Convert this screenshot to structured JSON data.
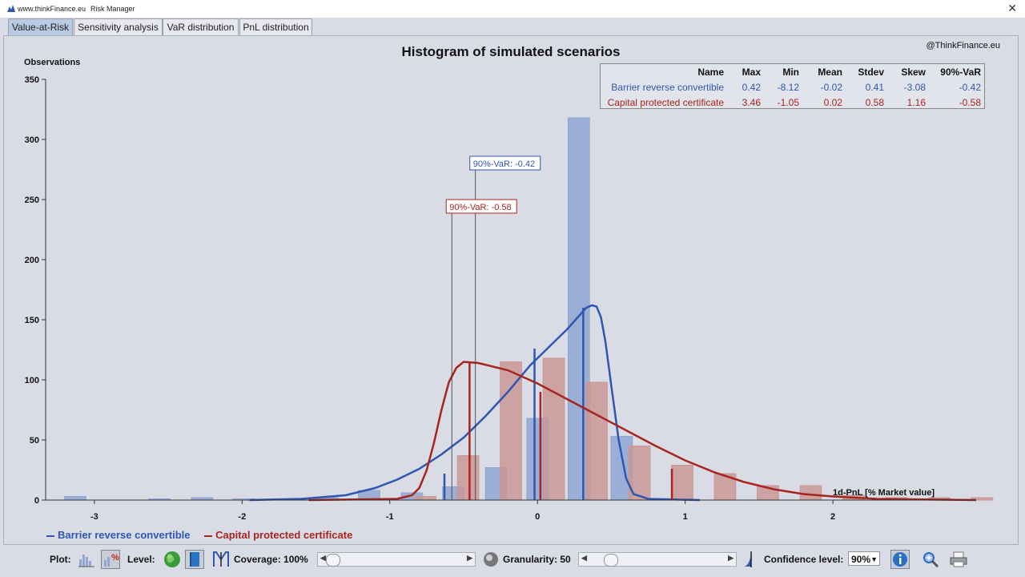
{
  "window": {
    "site": "www.thinkFinance.eu",
    "app": "Risk Manager",
    "close": "✕"
  },
  "tabs": [
    "Value-at-Risk",
    "Sensitivity analysis",
    "VaR distribution",
    "PnL distribution"
  ],
  "credit": "@ThinkFinance.eu",
  "stats": {
    "headers": [
      "Name",
      "Max",
      "Min",
      "Mean",
      "Stdev",
      "Skew",
      "90%-VaR"
    ],
    "rows": [
      [
        "Barrier reverse convertible",
        "0.42",
        "-8.12",
        "-0.02",
        "0.41",
        "-3.08",
        "-0.42"
      ],
      [
        "Capital protected certificate",
        "3.46",
        "-1.05",
        "0.02",
        "0.58",
        "1.16",
        "-0.58"
      ]
    ]
  },
  "legend": [
    "Barrier reverse convertible",
    "Capital protected certificate"
  ],
  "toolbar": {
    "plot": "Plot:",
    "level": "Level:",
    "coverage": "Coverage: 100%",
    "granularity": "Granularity: 50",
    "confidence": "Confidence level:",
    "confidence_value": "90%"
  },
  "colors": {
    "blue": "#2f56b0",
    "red": "#a8241f",
    "blue_bar": "#8fa6d2",
    "red_bar": "#c99896"
  },
  "chart_data": {
    "type": "bar",
    "title": "Histogram of simulated scenarios",
    "ylabel": "Observations",
    "xlabel": "1d-PnL [% Market value]",
    "xlim": [
      -3.33,
      2.97
    ],
    "ylim": [
      0,
      350
    ],
    "yticks": [
      0,
      50,
      100,
      150,
      200,
      250,
      300,
      350
    ],
    "xticks": [
      -3,
      -2,
      -1,
      0,
      1,
      2
    ],
    "bar_width": 0.145,
    "series": [
      {
        "name": "Barrier reverse convertible",
        "color": "#2f56b0",
        "bar_color": "#8fa6d2",
        "bars": [
          {
            "x": -3.13,
            "y": 3
          },
          {
            "x": -2.56,
            "y": 1
          },
          {
            "x": -2.27,
            "y": 2
          },
          {
            "x": -1.99,
            "y": 1
          },
          {
            "x": -1.71,
            "y": 1
          },
          {
            "x": -1.42,
            "y": 2
          },
          {
            "x": -1.14,
            "y": 8
          },
          {
            "x": -0.85,
            "y": 6
          },
          {
            "x": -0.57,
            "y": 11
          },
          {
            "x": -0.28,
            "y": 27
          },
          {
            "x": 0.0,
            "y": 68
          },
          {
            "x": 0.28,
            "y": 318
          },
          {
            "x": 0.57,
            "y": 53
          }
        ],
        "curve": [
          [
            -1.95,
            0
          ],
          [
            -1.6,
            1
          ],
          [
            -1.3,
            4
          ],
          [
            -1.1,
            10
          ],
          [
            -0.95,
            17
          ],
          [
            -0.8,
            26
          ],
          [
            -0.65,
            38
          ],
          [
            -0.5,
            52
          ],
          [
            -0.35,
            70
          ],
          [
            -0.2,
            90
          ],
          [
            -0.05,
            112
          ],
          [
            0.1,
            130
          ],
          [
            0.2,
            142
          ],
          [
            0.28,
            153
          ],
          [
            0.33,
            160
          ],
          [
            0.37,
            162
          ],
          [
            0.4,
            161
          ],
          [
            0.43,
            152
          ],
          [
            0.46,
            132
          ],
          [
            0.5,
            95
          ],
          [
            0.55,
            50
          ],
          [
            0.6,
            18
          ],
          [
            0.65,
            5
          ],
          [
            0.75,
            1
          ],
          [
            1.1,
            0
          ]
        ],
        "vlines": [
          {
            "x": -0.63,
            "y": 22
          },
          {
            "x": -0.02,
            "y": 126
          },
          {
            "x": 0.31,
            "y": 160
          }
        ],
        "var": -0.42,
        "var_label": "90%-VaR: -0.42"
      },
      {
        "name": "Capital protected certificate",
        "color": "#a8241f",
        "bar_color": "#c99896",
        "bars": [
          {
            "x": -1.05,
            "y": 1
          },
          {
            "x": -0.76,
            "y": 3
          },
          {
            "x": -0.47,
            "y": 37
          },
          {
            "x": -0.18,
            "y": 115
          },
          {
            "x": 0.11,
            "y": 118
          },
          {
            "x": 0.4,
            "y": 98
          },
          {
            "x": 0.69,
            "y": 45
          },
          {
            "x": 0.98,
            "y": 29
          },
          {
            "x": 1.27,
            "y": 22
          },
          {
            "x": 1.56,
            "y": 12
          },
          {
            "x": 1.85,
            "y": 12
          },
          {
            "x": 2.14,
            "y": 4
          },
          {
            "x": 2.43,
            "y": 2
          },
          {
            "x": 2.72,
            "y": 2
          },
          {
            "x": 3.01,
            "y": 2
          }
        ],
        "curve": [
          [
            -1.55,
            0
          ],
          [
            -0.95,
            1
          ],
          [
            -0.85,
            4
          ],
          [
            -0.8,
            10
          ],
          [
            -0.75,
            25
          ],
          [
            -0.7,
            48
          ],
          [
            -0.65,
            75
          ],
          [
            -0.6,
            98
          ],
          [
            -0.55,
            110
          ],
          [
            -0.5,
            115
          ],
          [
            -0.4,
            114
          ],
          [
            -0.2,
            108
          ],
          [
            0.0,
            97
          ],
          [
            0.2,
            84
          ],
          [
            0.4,
            71
          ],
          [
            0.6,
            58
          ],
          [
            0.8,
            45
          ],
          [
            1.0,
            33
          ],
          [
            1.2,
            23
          ],
          [
            1.4,
            15
          ],
          [
            1.6,
            9
          ],
          [
            1.8,
            5
          ],
          [
            2.0,
            3
          ],
          [
            2.3,
            1
          ],
          [
            2.97,
            0
          ]
        ],
        "vlines": [
          {
            "x": -0.46,
            "y": 114
          },
          {
            "x": 0.02,
            "y": 90
          },
          {
            "x": 0.91,
            "y": 26
          }
        ],
        "var": -0.58,
        "var_label": "90%-VaR: -0.58"
      }
    ]
  }
}
